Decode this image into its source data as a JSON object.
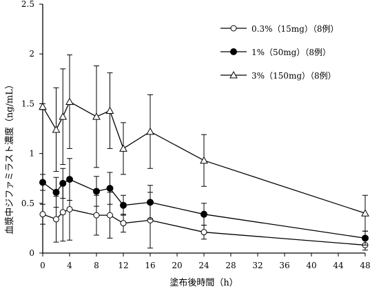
{
  "chart_data": {
    "type": "line",
    "title": "",
    "xlabel": "塗布後時間（h）",
    "ylabel": "血漿中ジファミラスト濃度（ng/mL）",
    "xlim": [
      0,
      48
    ],
    "ylim": [
      0,
      2.5
    ],
    "x_ticks": [
      0,
      4,
      8,
      12,
      16,
      20,
      24,
      28,
      32,
      36,
      40,
      44,
      48
    ],
    "y_ticks": [
      0,
      0.5,
      1,
      1.5,
      2,
      2.5
    ],
    "y_tick_labels": [
      "0",
      "0.5",
      "1",
      "1.5",
      "2",
      "2.5"
    ],
    "x": [
      0,
      2,
      3,
      4,
      8,
      10,
      12,
      16,
      24,
      48
    ],
    "grid": false,
    "legend_position": "top-right",
    "series": [
      {
        "name": "0.3%（15mg）（8例）",
        "marker": "open-circle",
        "values": [
          0.39,
          0.34,
          0.41,
          0.44,
          0.38,
          0.38,
          0.3,
          0.33,
          0.21,
          0.08
        ],
        "errors": [
          0.1,
          0.23,
          0.29,
          0.31,
          0.2,
          0.23,
          0.09,
          0.28,
          0.07,
          0.05
        ]
      },
      {
        "name": "1%（50mg）（8例）",
        "marker": "filled-circle",
        "values": [
          0.71,
          0.61,
          0.7,
          0.74,
          0.62,
          0.65,
          0.48,
          0.51,
          0.39,
          0.15
        ],
        "errors": [
          0.08,
          0.15,
          0.15,
          0.21,
          0.15,
          0.16,
          0.1,
          0.17,
          0.11,
          0.07
        ]
      },
      {
        "name": "3%（150mg）（8例）",
        "marker": "open-triangle",
        "values": [
          1.47,
          1.24,
          1.37,
          1.52,
          1.37,
          1.43,
          1.05,
          1.22,
          0.93,
          0.4
        ],
        "errors": [
          0.03,
          0.42,
          0.48,
          0.47,
          0.51,
          0.38,
          0.26,
          0.37,
          0.26,
          0.18
        ]
      }
    ]
  }
}
